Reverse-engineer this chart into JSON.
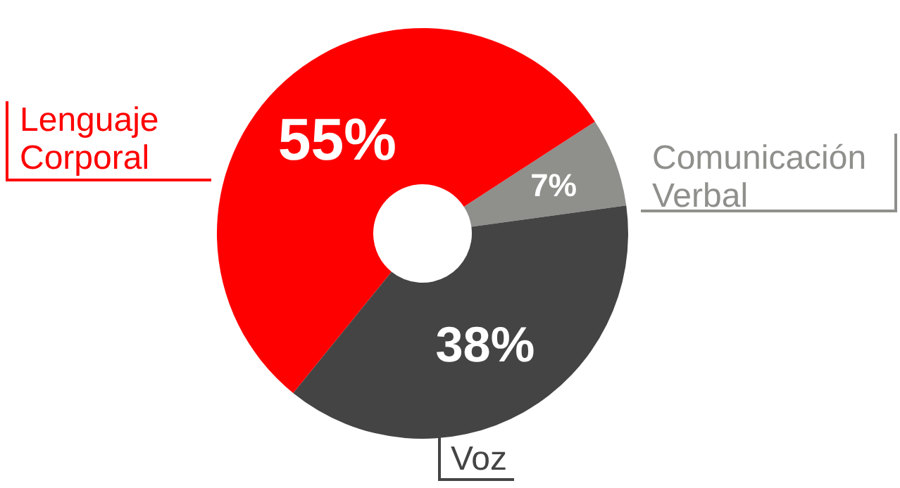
{
  "chart_data": {
    "type": "donut",
    "categories": [
      "Comunicación Verbal",
      "Voz",
      "Lenguaje Corporal"
    ],
    "values": [
      7,
      38,
      55
    ],
    "colors": [
      "#8f8f8c",
      "#454444",
      "#ff0000"
    ],
    "value_labels": [
      "7%",
      "38%",
      "55%"
    ]
  }
}
